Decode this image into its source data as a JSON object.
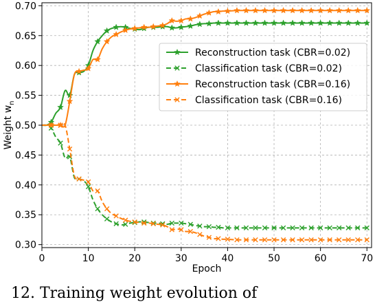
{
  "chart_data": {
    "type": "line",
    "title": "",
    "xlabel": "Epoch",
    "ylabel": "Weight w",
    "ylabel_subscript": "n",
    "xlim": [
      0,
      71
    ],
    "ylim": [
      0.295,
      0.705
    ],
    "xticks": [
      0,
      10,
      20,
      30,
      40,
      50,
      60,
      70
    ],
    "yticks": [
      0.3,
      0.35,
      0.4,
      0.45,
      0.5,
      0.55,
      0.6,
      0.65,
      0.7
    ],
    "ytick_labels": [
      "0.30",
      "0.35",
      "0.40",
      "0.45",
      "0.50",
      "0.55",
      "0.60",
      "0.65",
      "0.70"
    ],
    "xtick_labels": [
      "0",
      "10",
      "20",
      "30",
      "40",
      "50",
      "60",
      "70"
    ],
    "grid": true,
    "legend_position": "center-right",
    "series": [
      {
        "name": "Reconstruction task (CBR=0.02)",
        "color": "#2ca02c",
        "linestyle": "solid",
        "marker": "star",
        "x": [
          0,
          1,
          2,
          3,
          4,
          5,
          6,
          7,
          8,
          9,
          10,
          11,
          12,
          13,
          14,
          15,
          16,
          17,
          18,
          19,
          20,
          21,
          22,
          23,
          24,
          25,
          26,
          27,
          28,
          29,
          30,
          31,
          32,
          33,
          34,
          35,
          36,
          37,
          38,
          39,
          40,
          42,
          44,
          46,
          48,
          50,
          52,
          54,
          56,
          58,
          60,
          62,
          64,
          66,
          68,
          70
        ],
        "y": [
          0.5,
          0.5,
          0.505,
          0.52,
          0.53,
          0.558,
          0.55,
          0.585,
          0.588,
          0.59,
          0.6,
          0.625,
          0.64,
          0.65,
          0.658,
          0.662,
          0.664,
          0.665,
          0.664,
          0.662,
          0.661,
          0.66,
          0.662,
          0.664,
          0.664,
          0.664,
          0.665,
          0.665,
          0.663,
          0.663,
          0.664,
          0.665,
          0.666,
          0.668,
          0.669,
          0.67,
          0.67,
          0.671,
          0.671,
          0.671,
          0.671,
          0.671,
          0.671,
          0.671,
          0.671,
          0.671,
          0.671,
          0.671,
          0.671,
          0.671,
          0.671,
          0.671,
          0.671,
          0.671,
          0.671,
          0.671
        ]
      },
      {
        "name": "Classification task (CBR=0.02)",
        "color": "#2ca02c",
        "linestyle": "dashed",
        "marker": "x",
        "x": [
          0,
          1,
          2,
          3,
          4,
          5,
          6,
          7,
          8,
          9,
          10,
          11,
          12,
          13,
          14,
          15,
          16,
          17,
          18,
          19,
          20,
          21,
          22,
          23,
          24,
          25,
          26,
          27,
          28,
          29,
          30,
          31,
          32,
          33,
          34,
          35,
          36,
          37,
          38,
          39,
          40,
          42,
          44,
          46,
          48,
          50,
          52,
          54,
          56,
          58,
          60,
          62,
          64,
          66,
          68,
          70
        ],
        "y": [
          0.5,
          0.5,
          0.495,
          0.48,
          0.47,
          0.445,
          0.447,
          0.412,
          0.41,
          0.407,
          0.397,
          0.375,
          0.36,
          0.35,
          0.343,
          0.338,
          0.335,
          0.333,
          0.334,
          0.336,
          0.337,
          0.338,
          0.338,
          0.337,
          0.336,
          0.336,
          0.335,
          0.334,
          0.336,
          0.336,
          0.336,
          0.335,
          0.334,
          0.332,
          0.331,
          0.33,
          0.33,
          0.329,
          0.329,
          0.328,
          0.328,
          0.328,
          0.328,
          0.328,
          0.328,
          0.328,
          0.328,
          0.328,
          0.328,
          0.328,
          0.328,
          0.328,
          0.328,
          0.328,
          0.328,
          0.328
        ]
      },
      {
        "name": "Reconstruction task (CBR=0.16)",
        "color": "#ff7f0e",
        "linestyle": "solid",
        "marker": "star",
        "x": [
          0,
          1,
          2,
          3,
          4,
          5,
          6,
          7,
          8,
          9,
          10,
          11,
          12,
          13,
          14,
          15,
          16,
          17,
          18,
          19,
          20,
          21,
          22,
          23,
          24,
          25,
          26,
          27,
          28,
          29,
          30,
          31,
          32,
          33,
          34,
          35,
          36,
          37,
          38,
          39,
          40,
          42,
          44,
          46,
          48,
          50,
          52,
          54,
          56,
          58,
          60,
          62,
          64,
          66,
          68,
          70
        ],
        "y": [
          0.5,
          0.5,
          0.5,
          0.5,
          0.5,
          0.5,
          0.54,
          0.585,
          0.59,
          0.592,
          0.595,
          0.61,
          0.61,
          0.628,
          0.64,
          0.648,
          0.652,
          0.656,
          0.659,
          0.661,
          0.662,
          0.663,
          0.664,
          0.664,
          0.665,
          0.666,
          0.667,
          0.67,
          0.675,
          0.674,
          0.675,
          0.678,
          0.678,
          0.68,
          0.683,
          0.686,
          0.688,
          0.69,
          0.69,
          0.691,
          0.691,
          0.692,
          0.692,
          0.692,
          0.692,
          0.692,
          0.692,
          0.692,
          0.692,
          0.692,
          0.692,
          0.692,
          0.692,
          0.692,
          0.692,
          0.692
        ]
      },
      {
        "name": "Classification task (CBR=0.16)",
        "color": "#ff7f0e",
        "linestyle": "dashed",
        "marker": "x",
        "x": [
          0,
          1,
          2,
          3,
          4,
          5,
          6,
          7,
          8,
          9,
          10,
          11,
          12,
          13,
          14,
          15,
          16,
          17,
          18,
          19,
          20,
          21,
          22,
          23,
          24,
          25,
          26,
          27,
          28,
          29,
          30,
          31,
          32,
          33,
          34,
          35,
          36,
          37,
          38,
          39,
          40,
          42,
          44,
          46,
          48,
          50,
          52,
          54,
          56,
          58,
          60,
          62,
          64,
          66,
          68,
          70
        ],
        "y": [
          0.5,
          0.5,
          0.5,
          0.5,
          0.5,
          0.5,
          0.46,
          0.415,
          0.41,
          0.408,
          0.405,
          0.39,
          0.39,
          0.372,
          0.36,
          0.352,
          0.348,
          0.344,
          0.341,
          0.339,
          0.338,
          0.337,
          0.336,
          0.336,
          0.335,
          0.334,
          0.333,
          0.33,
          0.325,
          0.326,
          0.325,
          0.322,
          0.322,
          0.32,
          0.317,
          0.314,
          0.312,
          0.31,
          0.31,
          0.309,
          0.309,
          0.308,
          0.308,
          0.308,
          0.308,
          0.308,
          0.308,
          0.308,
          0.308,
          0.308,
          0.308,
          0.308,
          0.308,
          0.308,
          0.308,
          0.308
        ]
      }
    ],
    "marker_every": 2
  },
  "caption": {
    "text": "12.    Training weight evolution of"
  }
}
